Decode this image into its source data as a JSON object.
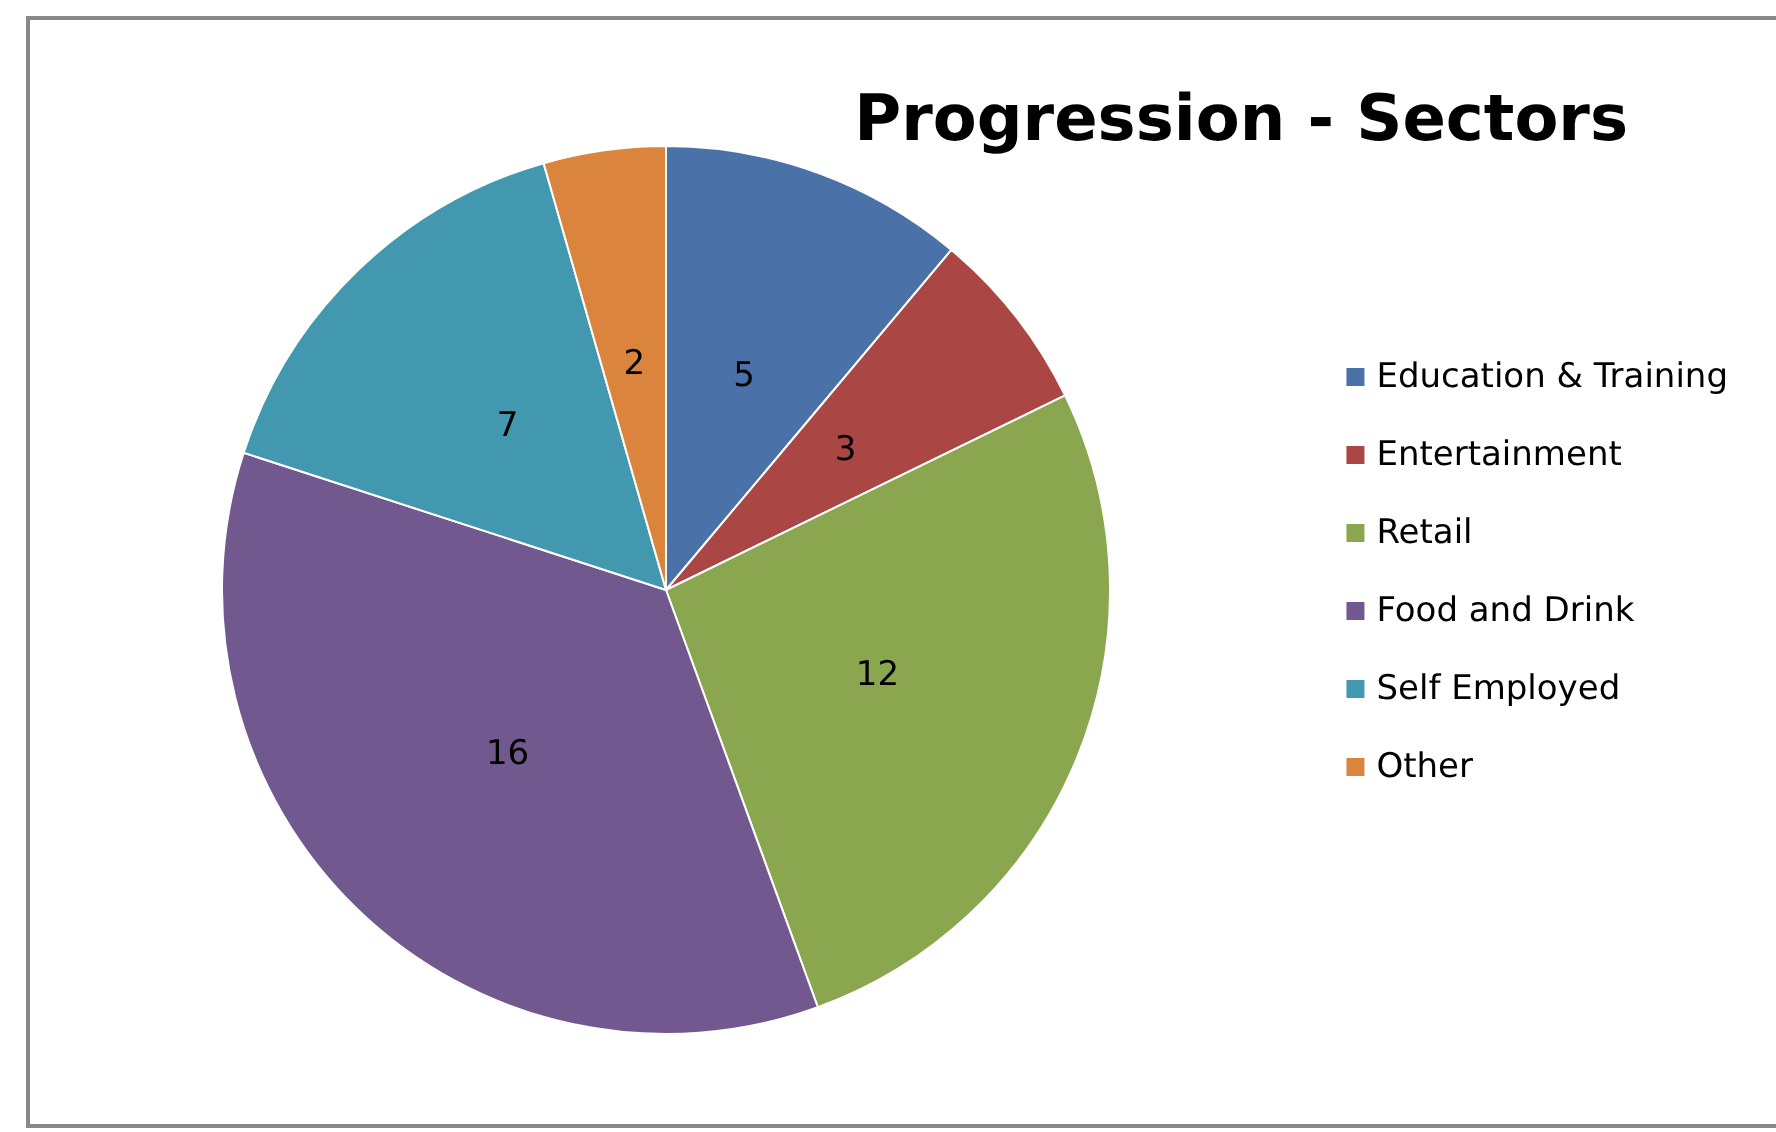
{
  "chart_data": {
    "type": "pie",
    "title": "Progression - Sectors",
    "categories": [
      "Education & Training",
      "Entertainment",
      "Retail",
      "Food and Drink",
      "Self Employed",
      "Other"
    ],
    "values": [
      5,
      3,
      12,
      16,
      7,
      2
    ],
    "colors": [
      "#4a72a8",
      "#aa4643",
      "#8aa64e",
      "#71588f",
      "#4198af",
      "#db843d"
    ],
    "data_labels": true,
    "legend": "right"
  }
}
